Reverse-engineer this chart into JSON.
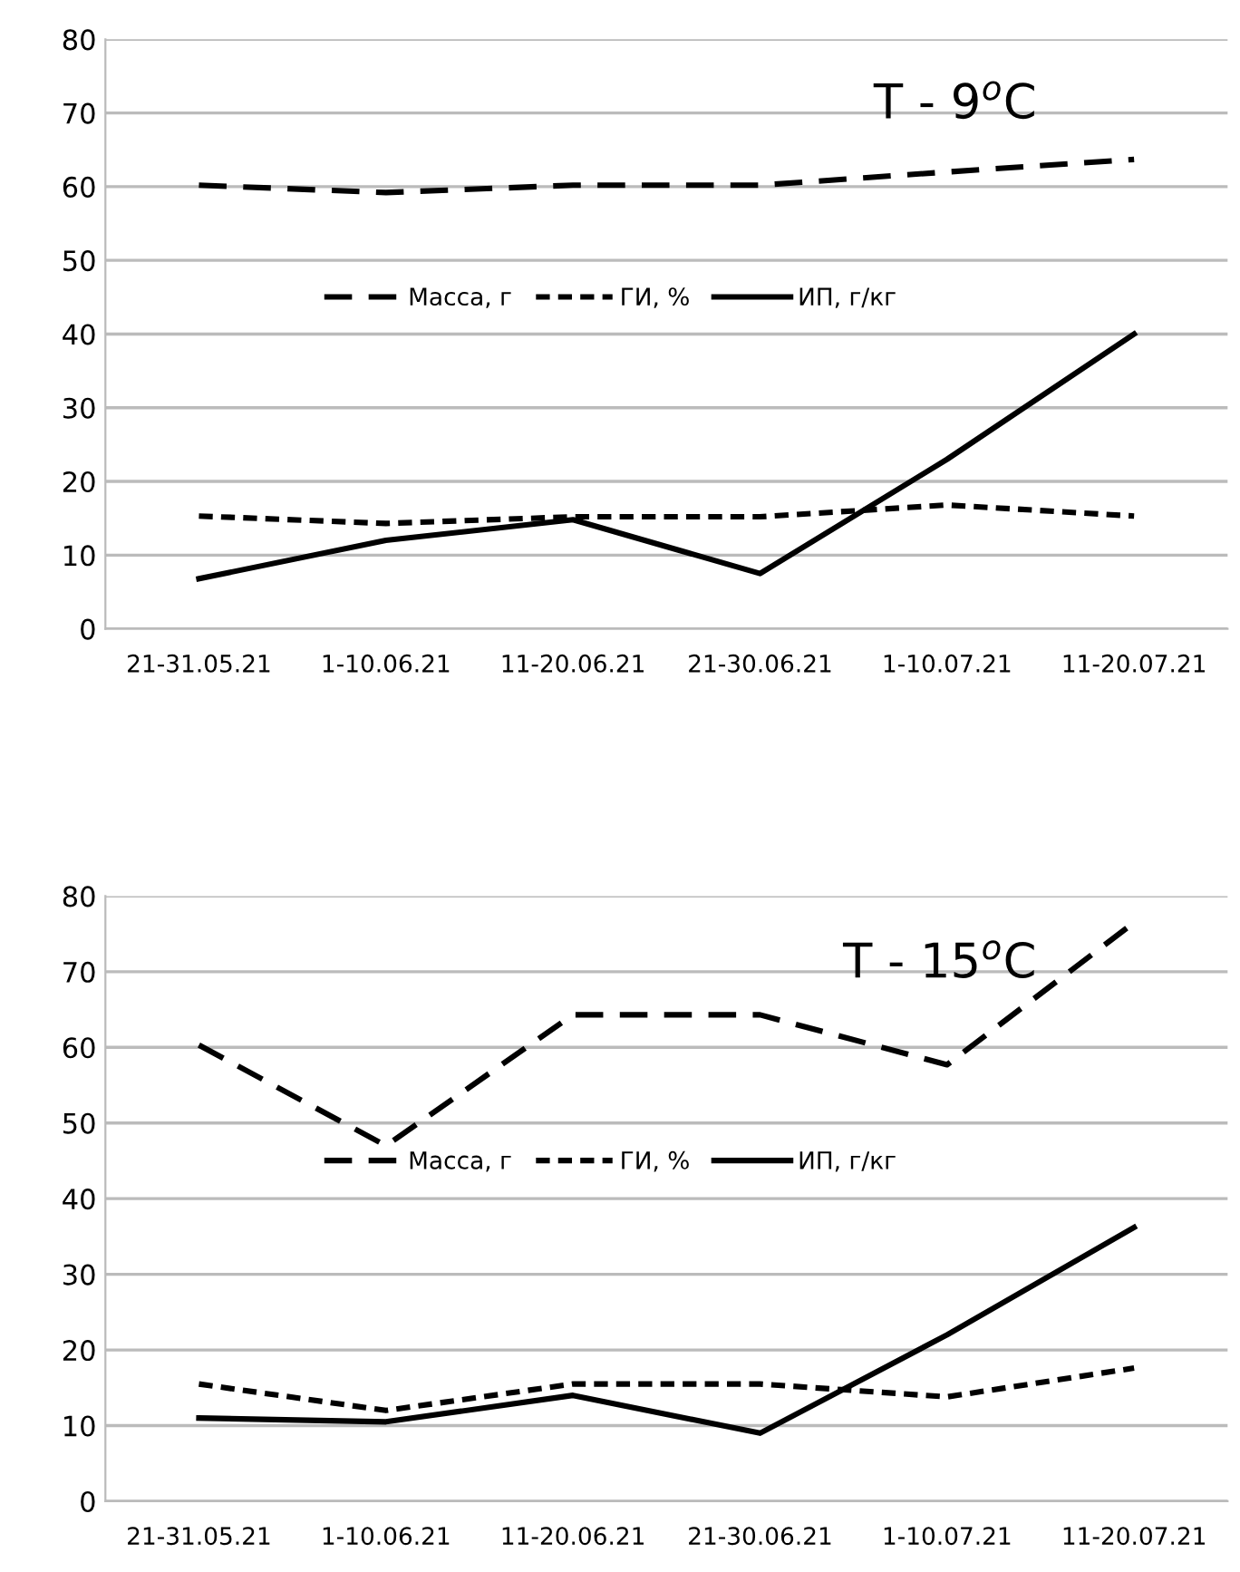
{
  "chart_data": [
    {
      "type": "line",
      "title": "T - 9$^{o}$C",
      "categories": [
        "21-31.05.21",
        "1-10.06.21",
        "11-20.06.21",
        "21-30.06.21",
        "1-10.07.21",
        "11-20.07.21"
      ],
      "series": [
        {
          "name": "Масса, г",
          "color": "#000000",
          "line_style": "dashed",
          "values": [
            60.2,
            59.2,
            60.2,
            60.2,
            62,
            63.7
          ]
        },
        {
          "name": "ГИ, %",
          "color": "#000000",
          "line_style": "dotted",
          "values": [
            15.3,
            14.3,
            15.2,
            15.2,
            16.8,
            15.3
          ]
        },
        {
          "name": "ИП, г/кг",
          "color": "#000000",
          "line_style": "solid",
          "values": [
            6.8,
            12,
            14.8,
            7.5,
            23,
            40
          ]
        }
      ],
      "ylim": [
        0,
        80
      ],
      "yticks": [
        0,
        10,
        20,
        30,
        40,
        50,
        60,
        70,
        80
      ],
      "grid": "y",
      "legend": "center",
      "marker": "none"
    },
    {
      "type": "line",
      "title": "T - 15$^{o}$C",
      "categories": [
        "21-31.05.21",
        "1-10.06.21",
        "11-20.06.21",
        "21-30.06.21",
        "1-10.07.21",
        "11-20.07.21"
      ],
      "series": [
        {
          "name": "Масса, г",
          "color": "#000000",
          "line_style": "dashed",
          "values": [
            60.3,
            47,
            64.3,
            64.3,
            57.7,
            76.5
          ]
        },
        {
          "name": "ГИ, %",
          "color": "#000000",
          "line_style": "dotted",
          "values": [
            15.5,
            12,
            15.5,
            15.5,
            13.8,
            17.6
          ]
        },
        {
          "name": "ИП, г/кг",
          "color": "#000000",
          "line_style": "solid",
          "values": [
            11,
            10.5,
            14,
            9,
            22,
            36.2
          ]
        }
      ],
      "ylim": [
        0,
        80
      ],
      "yticks": [
        0,
        10,
        20,
        30,
        40,
        50,
        60,
        70,
        80
      ],
      "grid": "y",
      "legend": "center",
      "marker": "none"
    }
  ]
}
